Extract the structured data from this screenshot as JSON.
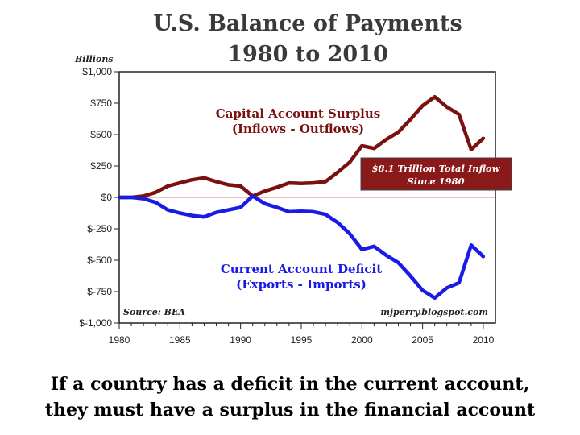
{
  "chart_data": {
    "type": "line",
    "title": "U.S. Balance of Payments",
    "subtitle": "1980 to 2010",
    "ylabel": "Billions",
    "ylim": [
      -1000,
      1000
    ],
    "xlim": [
      1980,
      2011
    ],
    "y_ticks": [
      1000,
      750,
      500,
      250,
      0,
      -250,
      -500,
      -750,
      -1000
    ],
    "y_tick_labels": [
      "$1,000",
      "$750",
      "$500",
      "$250",
      "$0",
      "$-250",
      "$-500",
      "$-750",
      "$-1,000"
    ],
    "x_ticks": [
      1980,
      1985,
      1990,
      1995,
      2000,
      2005,
      2010
    ],
    "x_tick_labels": [
      "1980",
      "1985",
      "1990",
      "1995",
      "2000",
      "2005",
      "2010"
    ],
    "x": [
      1980,
      1981,
      1982,
      1983,
      1984,
      1985,
      1986,
      1987,
      1988,
      1989,
      1990,
      1991,
      1992,
      1993,
      1994,
      1995,
      1996,
      1997,
      1998,
      1999,
      2000,
      2001,
      2002,
      2003,
      2004,
      2005,
      2006,
      2007,
      2008,
      2009,
      2010
    ],
    "series": [
      {
        "name": "Capital Account Surplus",
        "color": "#7a1010",
        "values": [
          0,
          0,
          10,
          40,
          90,
          115,
          140,
          155,
          125,
          100,
          90,
          10,
          50,
          80,
          115,
          110,
          115,
          125,
          200,
          280,
          410,
          390,
          460,
          520,
          620,
          730,
          800,
          720,
          660,
          380,
          470
        ]
      },
      {
        "name": "Current Account Deficit",
        "color": "#1a1ae6",
        "values": [
          0,
          0,
          -10,
          -40,
          -100,
          -125,
          -145,
          -155,
          -120,
          -100,
          -80,
          10,
          -50,
          -80,
          -115,
          -110,
          -115,
          -135,
          -200,
          -290,
          -415,
          -390,
          -460,
          -520,
          -625,
          -740,
          -800,
          -720,
          -680,
          -380,
          -470
        ]
      }
    ],
    "annotations": {
      "capital_line1": "Capital Account Surplus",
      "capital_line2": "(Inflows - Outflows)",
      "current_line1": "Current Account Deficit",
      "current_line2": "(Exports - Imports)",
      "total_line1": "$8.1 Trillion Total Inflow",
      "total_line2": "Since 1980",
      "source": "Source: BEA",
      "credit": "mjperry.blogspot.com"
    },
    "grid": false,
    "zero_line_color": "#e08080",
    "total_box_color": "#8a1a1a"
  },
  "caption": {
    "line1": "If a country has a deficit in the current account,",
    "line2": "they must have a surplus in the financial account"
  }
}
